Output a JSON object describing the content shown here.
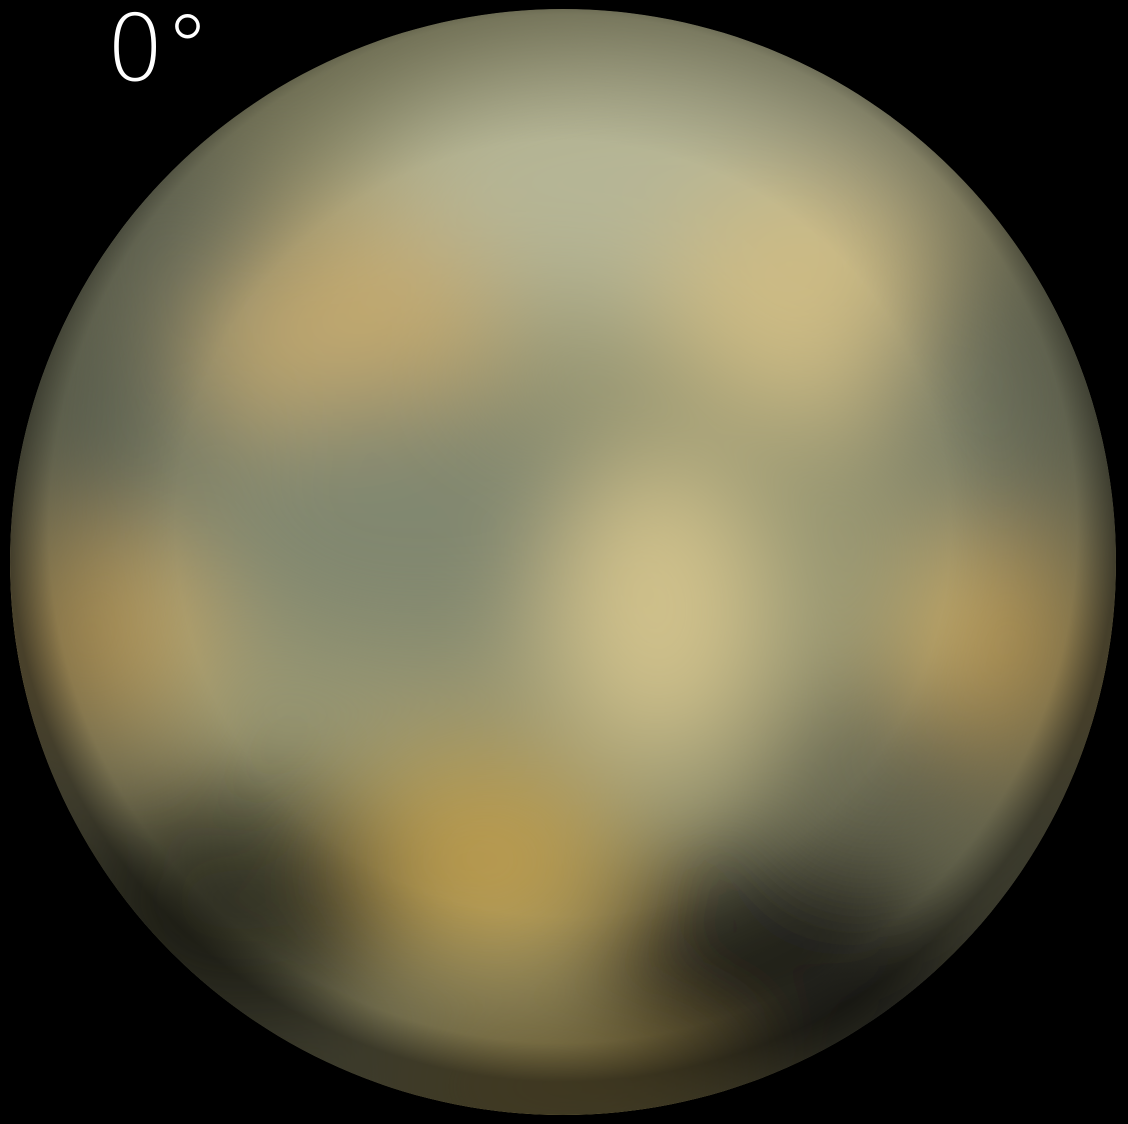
{
  "label": "0°"
}
